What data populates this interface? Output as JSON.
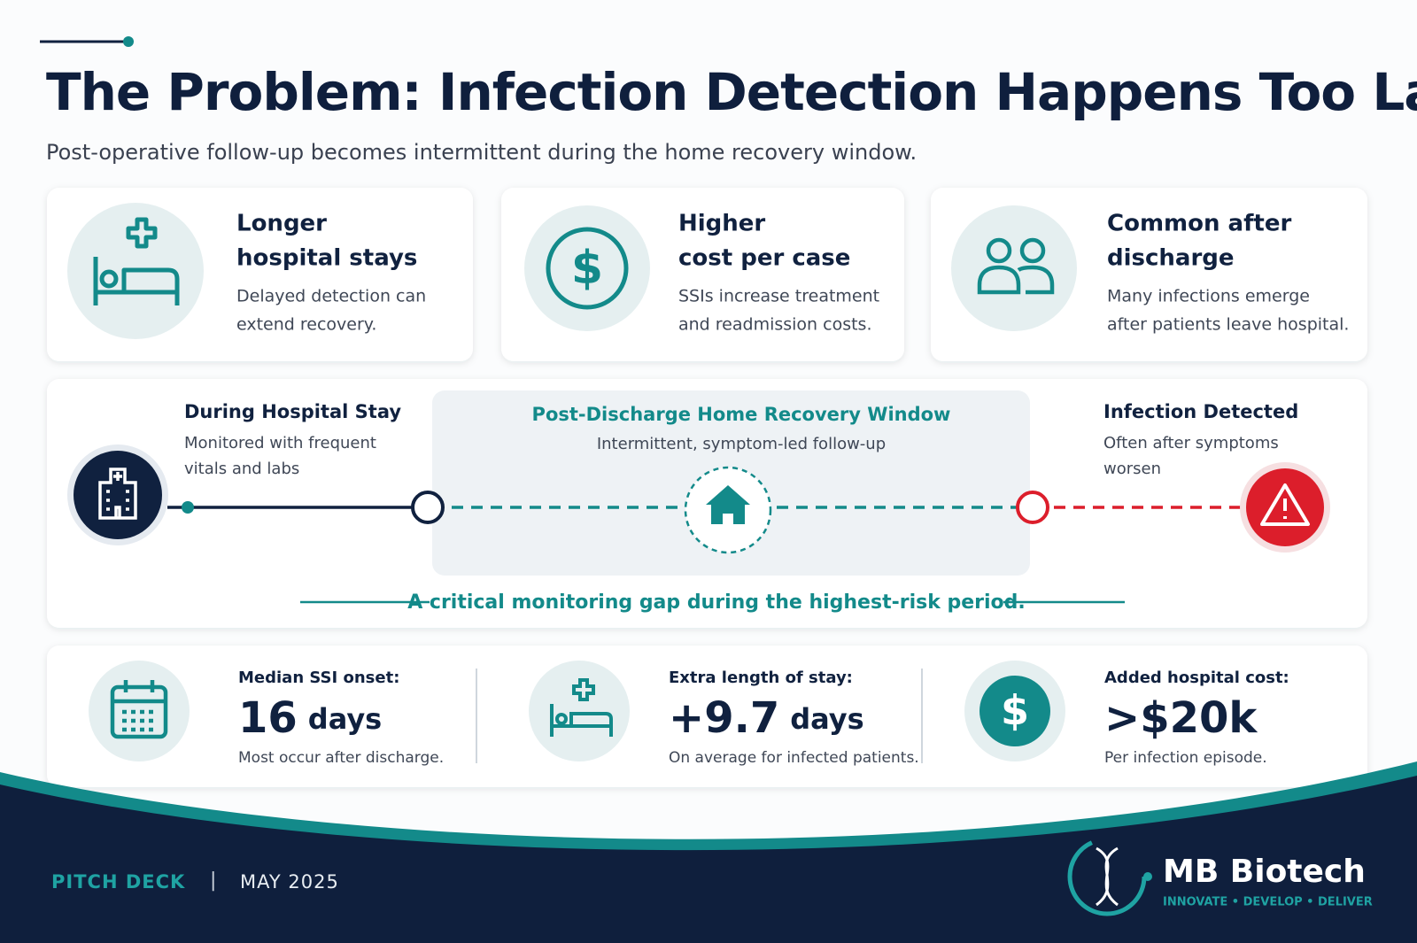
{
  "header": {
    "title": "The Problem: Infection Detection Happens Too Late",
    "subtitle": "Post-operative follow-up becomes intermittent during the home recovery window."
  },
  "cards": [
    {
      "title_lines": [
        "Longer",
        "hospital stays"
      ],
      "text_lines": [
        "Delayed detection can",
        "extend recovery."
      ]
    },
    {
      "title_lines": [
        "Higher",
        "cost per case"
      ],
      "text_lines": [
        "SSIs increase treatment",
        "and readmission costs."
      ]
    },
    {
      "title_lines": [
        "Common after",
        "discharge"
      ],
      "text_lines": [
        "Many infections emerge",
        "after patients leave hospital."
      ]
    }
  ],
  "timeline": {
    "start": {
      "title": "During Hospital Stay",
      "text_lines": [
        "Monitored with frequent",
        "vitals and labs"
      ]
    },
    "window": {
      "title": "Post-Discharge Home Recovery Window",
      "text": "Intermittent, symptom-led follow-up"
    },
    "end": {
      "title": "Infection Detected",
      "text_lines": [
        "Often after symptoms",
        "worsen"
      ]
    },
    "caption": "A critical monitoring gap during the highest-risk period."
  },
  "stats": [
    {
      "label": "Median SSI onset:",
      "value": "16",
      "unit": "days",
      "note": "Most occur after discharge."
    },
    {
      "label": "Extra length of stay:",
      "value": "+9.7",
      "unit": "days",
      "note": "On average for infected patients."
    },
    {
      "label": "Added hospital cost:",
      "value": ">$20k",
      "note": "Per infection episode."
    }
  ],
  "footer": {
    "section": "PITCH DECK",
    "separator": "|",
    "date": "MAY 2025",
    "brand": "MB Biotech",
    "tagline": "INNOVATE • DEVELOP • DELIVER"
  }
}
